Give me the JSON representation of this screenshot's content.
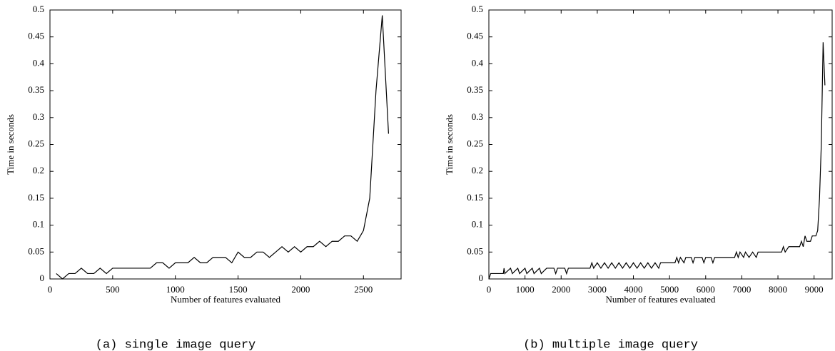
{
  "chart_data": [
    {
      "type": "line",
      "xlabel": "Number of features evaluated",
      "ylabel": "Time in seconds",
      "caption": "(a) single image query",
      "color": "#000000",
      "xlim": [
        0,
        2800
      ],
      "xticks": [
        0,
        500,
        1000,
        1500,
        2000,
        2500
      ],
      "ylim": [
        0,
        0.5
      ],
      "yticks": [
        0,
        0.05,
        0.1,
        0.15,
        0.2,
        0.25,
        0.3,
        0.35,
        0.4,
        0.45,
        0.5
      ],
      "x": [
        50,
        100,
        150,
        200,
        250,
        300,
        350,
        400,
        450,
        500,
        550,
        600,
        650,
        700,
        750,
        800,
        850,
        900,
        950,
        1000,
        1050,
        1100,
        1150,
        1200,
        1250,
        1300,
        1350,
        1400,
        1450,
        1500,
        1550,
        1600,
        1650,
        1700,
        1750,
        1800,
        1850,
        1900,
        1950,
        2000,
        2050,
        2100,
        2150,
        2200,
        2250,
        2300,
        2350,
        2400,
        2450,
        2500,
        2550,
        2600,
        2650,
        2700
      ],
      "values": [
        0.01,
        0,
        0.01,
        0.01,
        0.02,
        0.01,
        0.01,
        0.02,
        0.01,
        0.02,
        0.02,
        0.02,
        0.02,
        0.02,
        0.02,
        0.02,
        0.03,
        0.03,
        0.02,
        0.03,
        0.03,
        0.03,
        0.04,
        0.03,
        0.03,
        0.04,
        0.04,
        0.04,
        0.03,
        0.05,
        0.04,
        0.04,
        0.05,
        0.05,
        0.04,
        0.05,
        0.06,
        0.05,
        0.06,
        0.05,
        0.06,
        0.06,
        0.07,
        0.06,
        0.07,
        0.07,
        0.08,
        0.08,
        0.07,
        0.09,
        0.15,
        0.35,
        0.49,
        0.27
      ]
    },
    {
      "type": "line",
      "xlabel": "Number of features evaluated",
      "ylabel": "Time in seconds",
      "caption": "(b) multiple image query",
      "color": "#000000",
      "xlim": [
        0,
        9500
      ],
      "xticks": [
        0,
        1000,
        2000,
        3000,
        4000,
        5000,
        6000,
        7000,
        8000,
        9000
      ],
      "ylim": [
        0,
        0.5
      ],
      "yticks": [
        0,
        0.05,
        0.1,
        0.15,
        0.2,
        0.25,
        0.3,
        0.35,
        0.4,
        0.45,
        0.5
      ],
      "x": [
        0,
        50,
        400,
        420,
        440,
        600,
        650,
        800,
        850,
        1000,
        1050,
        1200,
        1250,
        1400,
        1450,
        1600,
        1650,
        1800,
        1850,
        1900,
        2100,
        2150,
        2200,
        2800,
        2850,
        2900,
        3000,
        3100,
        3200,
        3300,
        3400,
        3500,
        3600,
        3700,
        3800,
        3900,
        4000,
        4100,
        4200,
        4300,
        4400,
        4500,
        4600,
        4700,
        4750,
        5150,
        5200,
        5250,
        5300,
        5400,
        5450,
        5600,
        5650,
        5700,
        5900,
        5950,
        6000,
        6150,
        6200,
        6250,
        6800,
        6850,
        6900,
        6950,
        7050,
        7100,
        7200,
        7300,
        7400,
        7450,
        8100,
        8150,
        8200,
        8300,
        8600,
        8650,
        8700,
        8750,
        8800,
        8900,
        8950,
        9050,
        9100,
        9150,
        9200,
        9250,
        9300
      ],
      "values": [
        0,
        0.01,
        0.01,
        0.02,
        0.01,
        0.02,
        0.01,
        0.02,
        0.01,
        0.02,
        0.01,
        0.02,
        0.01,
        0.02,
        0.01,
        0.02,
        0.02,
        0.02,
        0.01,
        0.02,
        0.02,
        0.01,
        0.02,
        0.02,
        0.03,
        0.02,
        0.03,
        0.02,
        0.03,
        0.02,
        0.03,
        0.02,
        0.03,
        0.02,
        0.03,
        0.02,
        0.03,
        0.02,
        0.03,
        0.02,
        0.03,
        0.02,
        0.03,
        0.02,
        0.03,
        0.03,
        0.04,
        0.03,
        0.04,
        0.03,
        0.04,
        0.04,
        0.03,
        0.04,
        0.04,
        0.03,
        0.04,
        0.04,
        0.03,
        0.04,
        0.04,
        0.05,
        0.04,
        0.05,
        0.04,
        0.05,
        0.04,
        0.05,
        0.04,
        0.05,
        0.05,
        0.06,
        0.05,
        0.06,
        0.06,
        0.07,
        0.06,
        0.08,
        0.07,
        0.07,
        0.08,
        0.08,
        0.09,
        0.15,
        0.25,
        0.44,
        0.36
      ]
    }
  ]
}
